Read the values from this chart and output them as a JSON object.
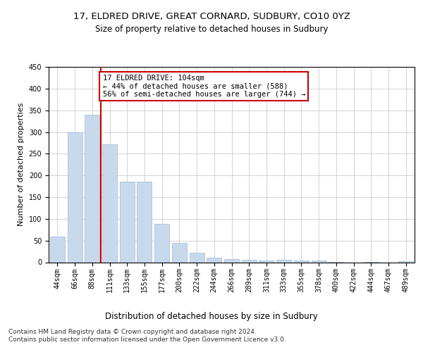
{
  "title_line1": "17, ELDRED DRIVE, GREAT CORNARD, SUDBURY, CO10 0YZ",
  "title_line2": "Size of property relative to detached houses in Sudbury",
  "xlabel": "Distribution of detached houses by size in Sudbury",
  "ylabel": "Number of detached properties",
  "categories": [
    "44sqm",
    "66sqm",
    "88sqm",
    "111sqm",
    "133sqm",
    "155sqm",
    "177sqm",
    "200sqm",
    "222sqm",
    "244sqm",
    "266sqm",
    "289sqm",
    "311sqm",
    "333sqm",
    "355sqm",
    "378sqm",
    "400sqm",
    "422sqm",
    "444sqm",
    "467sqm",
    "489sqm"
  ],
  "values": [
    60,
    300,
    340,
    272,
    185,
    185,
    88,
    45,
    22,
    11,
    7,
    5,
    4,
    5,
    4,
    4,
    1,
    0,
    1,
    0,
    3
  ],
  "bar_color": "#c9d9ec",
  "bar_edge_color": "#a0b8d8",
  "property_line_index": 3,
  "property_line_color": "#cc0000",
  "annotation_text": "17 ELDRED DRIVE: 104sqm\n← 44% of detached houses are smaller (588)\n56% of semi-detached houses are larger (744) →",
  "annotation_box_color": "#ffffff",
  "annotation_box_edge_color": "#cc0000",
  "annotation_fontsize": 7.5,
  "ylim": [
    0,
    450
  ],
  "yticks": [
    0,
    50,
    100,
    150,
    200,
    250,
    300,
    350,
    400,
    450
  ],
  "grid_color": "#cccccc",
  "background_color": "#ffffff",
  "footer_text": "Contains HM Land Registry data © Crown copyright and database right 2024.\nContains public sector information licensed under the Open Government Licence v3.0.",
  "title_fontsize": 9.5,
  "subtitle_fontsize": 8.5,
  "xlabel_fontsize": 8.5,
  "ylabel_fontsize": 8,
  "tick_fontsize": 7,
  "footer_fontsize": 6.5
}
